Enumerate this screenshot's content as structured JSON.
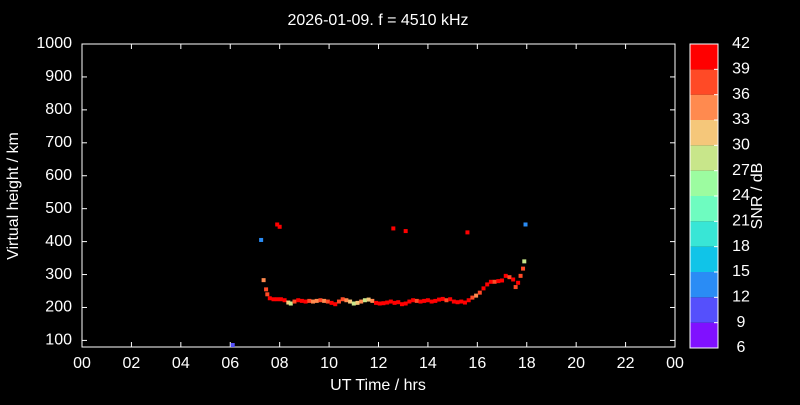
{
  "chart_data": {
    "type": "scatter",
    "title": "2026-01-09. f = 4510 kHz",
    "x_label": "UT Time / hrs",
    "y_label": "Virtual height / km",
    "x": [
      6.1,
      7.25,
      7.35,
      7.45,
      7.9,
      8.0,
      12.6,
      13.1,
      15.6,
      17.95,
      7.5,
      7.6,
      7.75,
      7.9,
      8.05,
      8.2,
      8.35,
      8.45,
      8.6,
      8.75,
      8.9,
      9.05,
      9.2,
      9.35,
      9.5,
      9.65,
      9.8,
      9.95,
      10.1,
      10.25,
      10.4,
      10.55,
      10.7,
      10.85,
      11.0,
      11.15,
      11.3,
      11.45,
      11.6,
      11.75,
      11.9,
      12.05,
      12.2,
      12.35,
      12.5,
      12.65,
      12.8,
      12.95,
      13.1,
      13.25,
      13.4,
      13.55,
      13.7,
      13.85,
      14.0,
      14.15,
      14.3,
      14.45,
      14.6,
      14.75,
      14.9,
      15.05,
      15.2,
      15.35,
      15.5,
      15.65,
      15.8,
      15.95,
      16.1,
      16.25,
      16.4,
      16.55,
      16.7,
      16.85,
      17.0,
      17.15,
      17.3,
      17.45,
      17.55,
      17.65,
      17.75,
      17.85,
      17.9
    ],
    "y": [
      86,
      405,
      283,
      255,
      452,
      445,
      440,
      432,
      428,
      452,
      240,
      228,
      225,
      225,
      225,
      222,
      215,
      212,
      218,
      222,
      220,
      218,
      220,
      218,
      220,
      222,
      220,
      218,
      214,
      210,
      218,
      225,
      222,
      218,
      212,
      214,
      218,
      222,
      224,
      220,
      214,
      212,
      213,
      215,
      218,
      214,
      216,
      210,
      212,
      218,
      222,
      220,
      218,
      220,
      222,
      218,
      220,
      224,
      226,
      222,
      225,
      218,
      216,
      218,
      215,
      222,
      230,
      236,
      245,
      258,
      270,
      278,
      278,
      280,
      282,
      296,
      292,
      285,
      262,
      275,
      296,
      318,
      340
    ],
    "snr": [
      9,
      12,
      33,
      36,
      39,
      39,
      39,
      39,
      39,
      12,
      36,
      39,
      39,
      39,
      39,
      39,
      30,
      27,
      36,
      39,
      39,
      39,
      36,
      33,
      33,
      36,
      33,
      36,
      39,
      39,
      36,
      36,
      33,
      30,
      27,
      30,
      33,
      27,
      30,
      33,
      39,
      39,
      39,
      39,
      39,
      39,
      39,
      39,
      39,
      39,
      39,
      36,
      39,
      39,
      39,
      39,
      39,
      39,
      39,
      36,
      39,
      39,
      39,
      39,
      39,
      39,
      36,
      33,
      36,
      39,
      39,
      39,
      36,
      39,
      39,
      39,
      36,
      39,
      36,
      39,
      36,
      36,
      27
    ],
    "xlim": [
      0,
      24
    ],
    "xticks": [
      {
        "value": 0,
        "label": "00"
      },
      {
        "value": 2,
        "label": "02"
      },
      {
        "value": 4,
        "label": "04"
      },
      {
        "value": 6,
        "label": "06"
      },
      {
        "value": 8,
        "label": "08"
      },
      10,
      12,
      14,
      16,
      18,
      20,
      22,
      {
        "value": 24,
        "label": "00"
      }
    ],
    "ylim": [
      80,
      1000
    ],
    "yticks": [
      100,
      200,
      300,
      400,
      500,
      600,
      700,
      800,
      900,
      1000
    ],
    "colorbar": {
      "label": "SNR / dB",
      "lim": [
        6,
        42
      ],
      "ticks": [
        6,
        9,
        12,
        15,
        18,
        21,
        24,
        27,
        30,
        33,
        36,
        39,
        42
      ],
      "colors": [
        "#8010ff",
        "#5550fc",
        "#2a8cf5",
        "#10c4e8",
        "#38e6d6",
        "#6efcc0",
        "#9cfca0",
        "#c8e68a",
        "#f5c77a",
        "#ff8a4f",
        "#ff4a26",
        "#ff0000"
      ]
    }
  }
}
